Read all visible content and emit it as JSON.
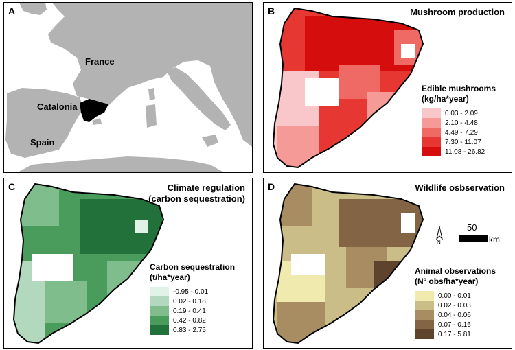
{
  "panels": {
    "a": {
      "letter": "A",
      "labels": {
        "france": "France",
        "catalonia": "Catalonia",
        "spain": "Spain"
      },
      "colors": {
        "sea": "#ffffff",
        "land": "#b3b3b3",
        "catalonia": "#000000"
      }
    },
    "b": {
      "letter": "B",
      "title": "Mushroom production",
      "legend_title_1": "Edible mushrooms",
      "legend_title_2": "(kg/ha*year)",
      "classes": [
        {
          "label": "0.03 - 2.09",
          "color": "#f9c6c9"
        },
        {
          "label": "2.10 - 4.48",
          "color": "#f59a97"
        },
        {
          "label": "4.49 - 7.29",
          "color": "#ef6a65"
        },
        {
          "label": "7.30 - 11.07",
          "color": "#e63732"
        },
        {
          "label": "11.08 - 26.82",
          "color": "#d60d0d"
        }
      ]
    },
    "c": {
      "letter": "C",
      "title_1": "Climate regulation",
      "title_2": "(carbon sequestration)",
      "legend_title_1": "Carbon sequestration",
      "legend_title_2": "(t/ha*year)",
      "classes": [
        {
          "label": "-0.95 - 0.01",
          "color": "#e1f3e6"
        },
        {
          "label": "0.02 - 0.18",
          "color": "#b2d9bd"
        },
        {
          "label": "0.19 - 0.41",
          "color": "#7fbd8d"
        },
        {
          "label": "0.42 - 0.82",
          "color": "#4a9c5d"
        },
        {
          "label": "0.83 - 2.75",
          "color": "#22703a"
        }
      ]
    },
    "d": {
      "letter": "D",
      "title": "Wildlife osbservation",
      "legend_title_1": "Animal observations",
      "legend_title_2": "(Nº obs/ha*year)",
      "classes": [
        {
          "label": "0.00 - 0.01",
          "color": "#f1eaae"
        },
        {
          "label": "0.02 - 0.03",
          "color": "#cbbd88"
        },
        {
          "label": "0.04 - 0.06",
          "color": "#a88d62"
        },
        {
          "label": "0.07 - 0.16",
          "color": "#836444"
        },
        {
          "label": "0.17 - 5.81",
          "color": "#5e432d"
        }
      ],
      "scalebar_value": "50",
      "scalebar_unit": "km",
      "north_label": "N"
    }
  }
}
